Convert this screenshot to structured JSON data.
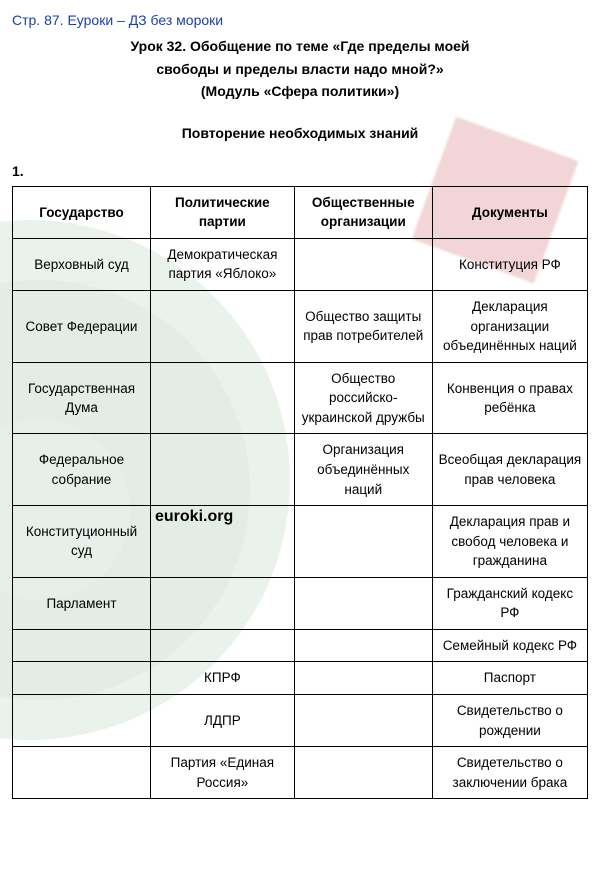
{
  "page_header": "Стр. 87. Еуроки – ДЗ без мороки",
  "title": {
    "line1": "Урок 32. Обобщение по теме «Где пределы моей",
    "line2": "свободы и пределы власти надо мной?»",
    "line3": "(Модуль «Сфера политики»)"
  },
  "subheading": "Повторение необходимых знаний",
  "question_number": "1.",
  "watermark_text": "euroki",
  "center_watermark": "euroki.org",
  "table": {
    "columns": [
      "Государство",
      "Политические партии",
      "Общественные организации",
      "Документы"
    ],
    "rows": [
      [
        "Верховный суд",
        "Демократическая партия «Яблоко»",
        "",
        "Конституция РФ"
      ],
      [
        "Совет Федерации",
        "",
        "Общество защиты прав потребителей",
        "Декларация организации объединённых наций"
      ],
      [
        "Государственная Дума",
        "",
        "Общество российско-украинской дружбы",
        "Конвенция о правах ребёнка"
      ],
      [
        "Федеральное собрание",
        "",
        "Организация объединённых наций",
        "Всеобщая декларация прав человека"
      ],
      [
        "Конституционный суд",
        "",
        "",
        "Декларация прав и свобод человека и гражданина"
      ],
      [
        "Парламент",
        "",
        "",
        "Гражданский кодекс РФ"
      ],
      [
        "",
        "",
        "",
        "Семейный кодекс РФ"
      ],
      [
        "",
        "КПРФ",
        "",
        "Паспорт"
      ],
      [
        "",
        "ЛДПР",
        "",
        "Свидетельство о рождении"
      ],
      [
        "",
        "Партия «Единая Россия»",
        "",
        "Свидетельство о заключении брака"
      ]
    ],
    "border_color": "#000000",
    "font_size_pt": 10,
    "header_font_weight": 700
  },
  "colors": {
    "link_blue": "#1a3fb0",
    "text": "#000000",
    "bg": "#ffffff",
    "wm_green1": "#d9e8dc",
    "wm_green2": "#dce8e0",
    "wm_green3": "#e4ece6",
    "wm_green4": "#ecf2ee",
    "wm_red": "#d36a6e"
  }
}
